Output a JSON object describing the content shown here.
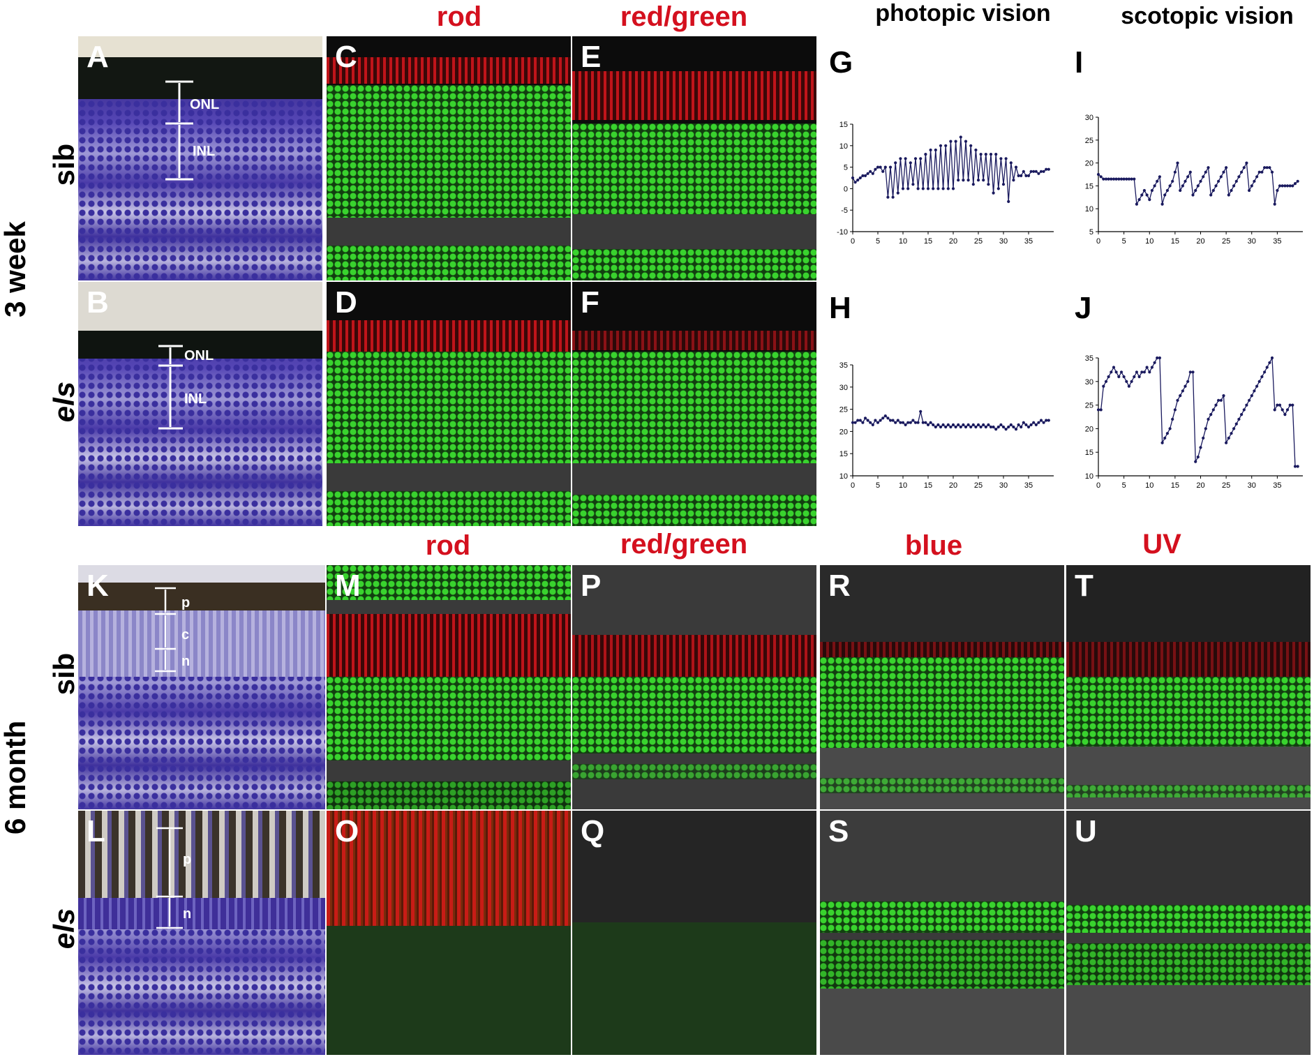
{
  "headers": {
    "top": {
      "rod": "rod",
      "red_green": "red/green",
      "photopic": "photopic vision",
      "scotopic": "scotopic vision"
    },
    "bottom": {
      "rod": "rod",
      "red_green": "red/green",
      "blue": "blue",
      "uv": "UV"
    }
  },
  "rows": {
    "age_top": "3 week",
    "age_bottom": "6 month",
    "sib": "sib",
    "els": "els"
  },
  "panels": {
    "A": "A",
    "B": "B",
    "C": "C",
    "D": "D",
    "E": "E",
    "F": "F",
    "G": "G",
    "H": "H",
    "I": "I",
    "J": "J",
    "K": "K",
    "L": "L",
    "M": "M",
    "O": "O",
    "P": "P",
    "Q": "Q",
    "R": "R",
    "S": "S",
    "T": "T",
    "U": "U"
  },
  "layers": {
    "onl": "ONL",
    "inl": "INL",
    "p": "p",
    "c": "c",
    "n": "n"
  },
  "colors": {
    "header_red": "#d4101e",
    "series": "#1a1a5e"
  },
  "chart_data": [
    {
      "id": "G",
      "type": "line",
      "xticks": [
        "0",
        "5",
        "10",
        "15",
        "20",
        "25",
        "30",
        "35"
      ],
      "yticks": [
        "15",
        "10",
        "5",
        "0",
        "-5",
        "-10"
      ],
      "xlim": [
        0,
        40
      ],
      "ylim": [
        -10,
        15
      ],
      "x": [
        0,
        0.5,
        1,
        1.5,
        2,
        2.5,
        3,
        3.5,
        4,
        4.5,
        5,
        5.5,
        6,
        6.5,
        7,
        7.5,
        8,
        8.5,
        9,
        9.5,
        10,
        10.5,
        11,
        11.5,
        12,
        12.5,
        13,
        13.5,
        14,
        14.5,
        15,
        15.5,
        16,
        16.5,
        17,
        17.5,
        18,
        18.5,
        19,
        19.5,
        20,
        20.5,
        21,
        21.5,
        22,
        22.5,
        23,
        23.5,
        24,
        24.5,
        25,
        25.5,
        26,
        26.5,
        27,
        27.5,
        28,
        28.5,
        29,
        29.5,
        30,
        30.5,
        31,
        31.5,
        32,
        32.5,
        33,
        33.5,
        34,
        34.5,
        35,
        35.5,
        36,
        36.5,
        37,
        37.5,
        38,
        38.5,
        39
      ],
      "y": [
        2.5,
        1.5,
        2,
        2.5,
        3,
        3,
        3.5,
        4,
        3.5,
        4.5,
        5,
        5,
        4,
        5,
        -2,
        5,
        -2,
        6,
        -1,
        7,
        0,
        7,
        0,
        6,
        1,
        7,
        0,
        7,
        0,
        8,
        0,
        9,
        0,
        9,
        0,
        10,
        0,
        10,
        0,
        11,
        0,
        11,
        2,
        12,
        2,
        11,
        2,
        10,
        1,
        9,
        2,
        8,
        2,
        8,
        1,
        8,
        -1,
        8,
        0,
        7,
        1,
        7,
        -3,
        6,
        2,
        5,
        3,
        3,
        4,
        3,
        3,
        4,
        4,
        4,
        3.5,
        4,
        4,
        4.5,
        4.5
      ]
    },
    {
      "id": "H",
      "type": "line",
      "xticks": [
        "0",
        "5",
        "10",
        "15",
        "20",
        "25",
        "30",
        "35"
      ],
      "yticks": [
        "35",
        "30",
        "25",
        "20",
        "15",
        "10"
      ],
      "xlim": [
        0,
        40
      ],
      "ylim": [
        10,
        35
      ],
      "x": [
        0,
        0.5,
        1,
        1.5,
        2,
        2.5,
        3,
        3.5,
        4,
        4.5,
        5,
        5.5,
        6,
        6.5,
        7,
        7.5,
        8,
        8.5,
        9,
        9.5,
        10,
        10.5,
        11,
        11.5,
        12,
        12.5,
        13,
        13.5,
        14,
        14.5,
        15,
        15.5,
        16,
        16.5,
        17,
        17.5,
        18,
        18.5,
        19,
        19.5,
        20,
        20.5,
        21,
        21.5,
        22,
        22.5,
        23,
        23.5,
        24,
        24.5,
        25,
        25.5,
        26,
        26.5,
        27,
        27.5,
        28,
        28.5,
        29,
        29.5,
        30,
        30.5,
        31,
        31.5,
        32,
        32.5,
        33,
        33.5,
        34,
        34.5,
        35,
        35.5,
        36,
        36.5,
        37,
        37.5,
        38,
        38.5,
        39
      ],
      "y": [
        22,
        22,
        22.5,
        22.5,
        22,
        23,
        22.5,
        22,
        21.5,
        22.5,
        22,
        22.5,
        23,
        23.5,
        23,
        22.5,
        22.5,
        22,
        22.5,
        22,
        22,
        21.5,
        22,
        22,
        22.5,
        22,
        22,
        24.5,
        22,
        22,
        21.5,
        22,
        21.5,
        21,
        21.5,
        21,
        21.5,
        21,
        21.5,
        21,
        21.5,
        21,
        21.5,
        21,
        21.5,
        21,
        21.5,
        21,
        21.5,
        21,
        21.5,
        21,
        21.5,
        21,
        21.5,
        21,
        21,
        20.5,
        21,
        21.5,
        21,
        20.5,
        21,
        21.5,
        21,
        20.5,
        21.5,
        21,
        22,
        21.5,
        21,
        21.5,
        22,
        21.5,
        22,
        22.5,
        22,
        22.5,
        22.5
      ]
    },
    {
      "id": "I",
      "type": "line",
      "xticks": [
        "0",
        "5",
        "10",
        "15",
        "20",
        "25",
        "30",
        "35"
      ],
      "yticks": [
        "30",
        "25",
        "20",
        "15",
        "10",
        "5"
      ],
      "xlim": [
        0,
        40
      ],
      "ylim": [
        5,
        30
      ],
      "x": [
        0,
        0.5,
        1,
        1.5,
        2,
        2.5,
        3,
        3.5,
        4,
        4.5,
        5,
        5.5,
        6,
        6.5,
        7,
        7.5,
        8,
        8.5,
        9,
        9.5,
        10,
        10.5,
        11,
        11.5,
        12,
        12.5,
        13,
        13.5,
        14,
        14.5,
        15,
        15.5,
        16,
        16.5,
        17,
        17.5,
        18,
        18.5,
        19,
        19.5,
        20,
        20.5,
        21,
        21.5,
        22,
        22.5,
        23,
        23.5,
        24,
        24.5,
        25,
        25.5,
        26,
        26.5,
        27,
        27.5,
        28,
        28.5,
        29,
        29.5,
        30,
        30.5,
        31,
        31.5,
        32,
        32.5,
        33,
        33.5,
        34,
        34.5,
        35,
        35.5,
        36,
        36.5,
        37,
        37.5,
        38,
        38.5,
        39
      ],
      "y": [
        17.5,
        17,
        16.5,
        16.5,
        16.5,
        16.5,
        16.5,
        16.5,
        16.5,
        16.5,
        16.5,
        16.5,
        16.5,
        16.5,
        16.5,
        11,
        12,
        13,
        14,
        13,
        12,
        14,
        15,
        16,
        17,
        11,
        13,
        14,
        15,
        16,
        18,
        20,
        14,
        15,
        16,
        17,
        18,
        13,
        14,
        15,
        16,
        17,
        18,
        19,
        13,
        14,
        15,
        16,
        17,
        18,
        19,
        13,
        14,
        15,
        16,
        17,
        18,
        19,
        20,
        14,
        15,
        16,
        17,
        18,
        18,
        19,
        19,
        19,
        18,
        11,
        14,
        15,
        15,
        15,
        15,
        15,
        15,
        15.5,
        16
      ]
    },
    {
      "id": "J",
      "type": "line",
      "xticks": [
        "0",
        "5",
        "10",
        "15",
        "20",
        "25",
        "30",
        "35"
      ],
      "yticks": [
        "35",
        "30",
        "25",
        "20",
        "15",
        "10"
      ],
      "xlim": [
        0,
        40
      ],
      "ylim": [
        10,
        35
      ],
      "x": [
        0,
        0.5,
        1,
        1.5,
        2,
        2.5,
        3,
        3.5,
        4,
        4.5,
        5,
        5.5,
        6,
        6.5,
        7,
        7.5,
        8,
        8.5,
        9,
        9.5,
        10,
        10.5,
        11,
        11.5,
        12,
        12.5,
        13,
        13.5,
        14,
        14.5,
        15,
        15.5,
        16,
        16.5,
        17,
        17.5,
        18,
        18.5,
        19,
        19.5,
        20,
        20.5,
        21,
        21.5,
        22,
        22.5,
        23,
        23.5,
        24,
        24.5,
        25,
        25.5,
        26,
        26.5,
        27,
        27.5,
        28,
        28.5,
        29,
        29.5,
        30,
        30.5,
        31,
        31.5,
        32,
        32.5,
        33,
        33.5,
        34,
        34.5,
        35,
        35.5,
        36,
        36.5,
        37,
        37.5,
        38,
        38.5,
        39
      ],
      "y": [
        24,
        24,
        29,
        30,
        31,
        32,
        33,
        32,
        31,
        32,
        31,
        30,
        29,
        30,
        31,
        32,
        31,
        32,
        32,
        33,
        32,
        33,
        34,
        35,
        35,
        17,
        18,
        19,
        20,
        22,
        24,
        26,
        27,
        28,
        29,
        30,
        32,
        32,
        13,
        14,
        16,
        18,
        20,
        22,
        23,
        24,
        25,
        26,
        26,
        27,
        17,
        18,
        19,
        20,
        21,
        22,
        23,
        24,
        25,
        26,
        27,
        28,
        29,
        30,
        31,
        32,
        33,
        34,
        35,
        24,
        25,
        25,
        24,
        23,
        24,
        25,
        25,
        12,
        12
      ]
    }
  ]
}
